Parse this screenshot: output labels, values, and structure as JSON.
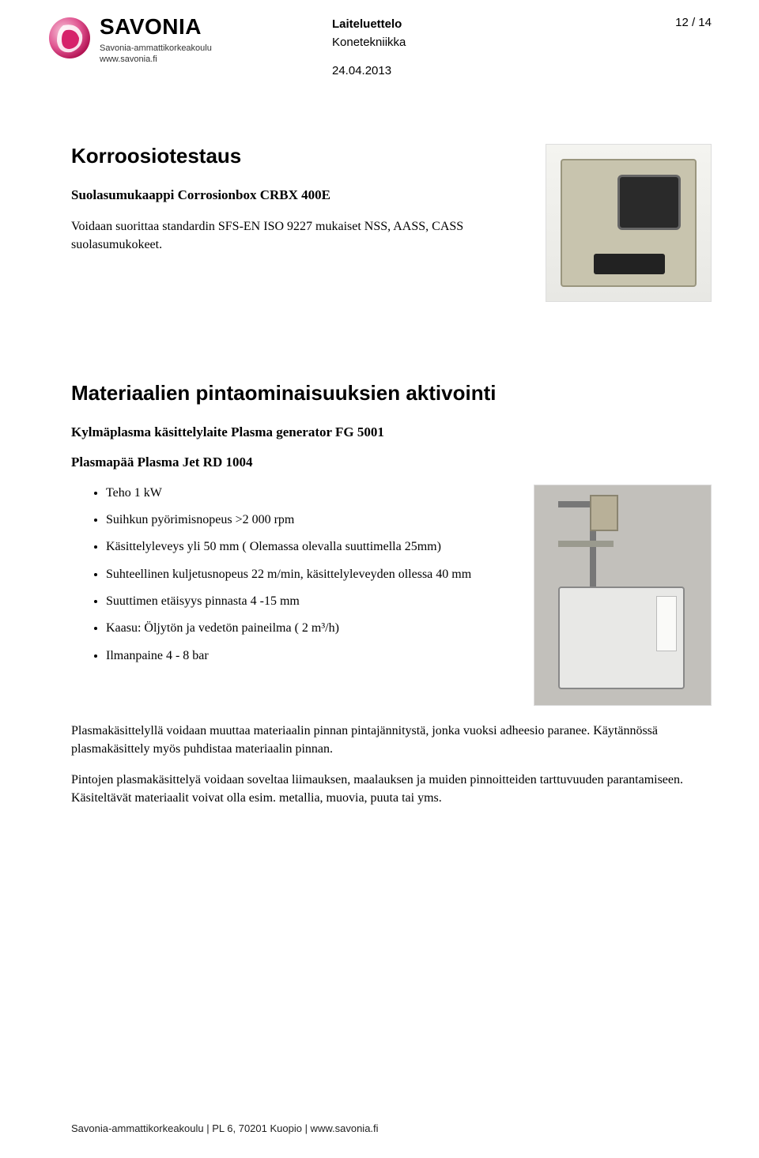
{
  "header": {
    "org_name": "SAVONIA",
    "org_sub1": "Savonia-ammattikorkeakoulu",
    "org_sub2": "www.savonia.fi",
    "doc_title": "Laiteluettelo",
    "doc_subtitle": "Konetekniikka",
    "doc_date": "24.04.2013",
    "page_num": "12 / 14"
  },
  "section1": {
    "heading": "Korroosiotestaus",
    "subheading": "Suolasumukaappi Corrosionbox CRBX 400E",
    "paragraph": "Voidaan suorittaa standardin SFS-EN ISO 9227 mukaiset NSS, AASS, CASS suolasumukokeet."
  },
  "section2": {
    "heading": "Materiaalien pintaominaisuuksien aktivointi",
    "subheading1": "Kylmäplasma käsittelylaite Plasma generator FG 5001",
    "subheading2": "Plasmapää Plasma Jet RD 1004",
    "bullets": [
      "Teho 1 kW",
      "Suihkun pyörimisnopeus >2 000 rpm",
      "Käsittelyleveys yli 50 mm ( Olemassa olevalla suuttimella 25mm)",
      "Suhteellinen kuljetusnopeus 22 m/min, käsittelyleveyden ollessa 40 mm",
      "Suuttimen etäisyys pinnasta 4 -15 mm",
      "Kaasu: Öljytön ja vedetön paineilma ( 2 m³/h)",
      "Ilmanpaine 4 - 8 bar"
    ],
    "para1": "Plasmakäsittelyllä voidaan muuttaa materiaalin pinnan pintajännitystä, jonka vuoksi adheesio paranee.  Käytännössä plasmakäsittely myös puhdistaa materiaalin pinnan.",
    "para2": "Pintojen plasmakäsittelyä voidaan soveltaa liimauksen, maalauksen ja muiden pinnoitteiden tarttuvuuden parantamiseen. Käsiteltävät materiaalit voivat olla esim. metallia, muovia, puuta tai yms."
  },
  "footer": "Savonia-ammattikorkeakoulu | PL 6, 70201 Kuopio | www.savonia.fi",
  "colors": {
    "brand_pink": "#d6226a",
    "brand_pink_light": "#f5b8d0",
    "text": "#000000",
    "bg": "#ffffff"
  }
}
